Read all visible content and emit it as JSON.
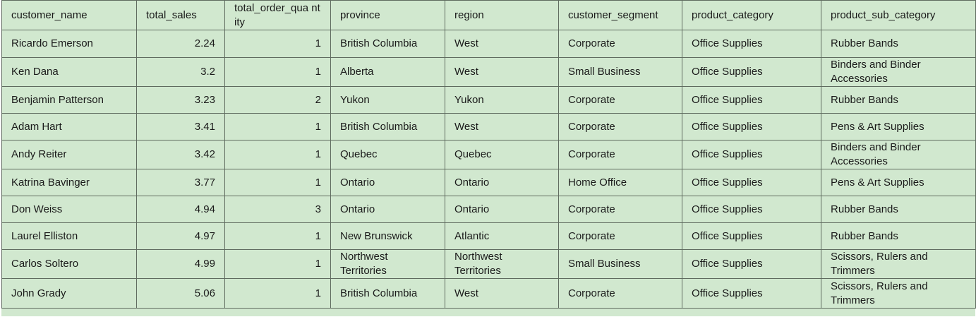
{
  "table": {
    "columns": [
      "customer_name",
      "total_sales",
      "total_order_qua ntity",
      "province",
      "region",
      "customer_segment",
      "product_category",
      "product_sub_category"
    ],
    "rows": [
      [
        "Ricardo Emerson",
        "2.24",
        "1",
        "British Columbia",
        "West",
        "Corporate",
        "Office Supplies",
        "Rubber Bands"
      ],
      [
        "Ken Dana",
        "3.2",
        "1",
        "Alberta",
        "West",
        "Small Business",
        "Office Supplies",
        "Binders and Binder Accessories"
      ],
      [
        "Benjamin Patterson",
        "3.23",
        "2",
        "Yukon",
        "Yukon",
        "Corporate",
        "Office Supplies",
        "Rubber Bands"
      ],
      [
        "Adam Hart",
        "3.41",
        "1",
        "British Columbia",
        "West",
        "Corporate",
        "Office Supplies",
        "Pens & Art Supplies"
      ],
      [
        "Andy Reiter",
        "3.42",
        "1",
        "Quebec",
        "Quebec",
        "Corporate",
        "Office Supplies",
        "Binders and Binder Accessories"
      ],
      [
        "Katrina Bavinger",
        "3.77",
        "1",
        "Ontario",
        "Ontario",
        "Home Office",
        "Office Supplies",
        "Pens & Art Supplies"
      ],
      [
        "Don Weiss",
        "4.94",
        "3",
        "Ontario",
        "Ontario",
        "Corporate",
        "Office Supplies",
        "Rubber Bands"
      ],
      [
        "Laurel Elliston",
        "4.97",
        "1",
        "New Brunswick",
        "Atlantic",
        "Corporate",
        "Office Supplies",
        "Rubber Bands"
      ],
      [
        "Carlos Soltero",
        "4.99",
        "1",
        "Northwest Territories",
        "Northwest Territories",
        "Small Business",
        "Office Supplies",
        "Scissors, Rulers and Trimmers"
      ],
      [
        "John Grady",
        "5.06",
        "1",
        "British Columbia",
        "West",
        "Corporate",
        "Office Supplies",
        "Scissors, Rulers and Trimmers"
      ]
    ]
  },
  "colors": {
    "cell_background": "#d1e8cf",
    "grid_line": "#5f6b5f",
    "text": "#1a1a1a"
  }
}
